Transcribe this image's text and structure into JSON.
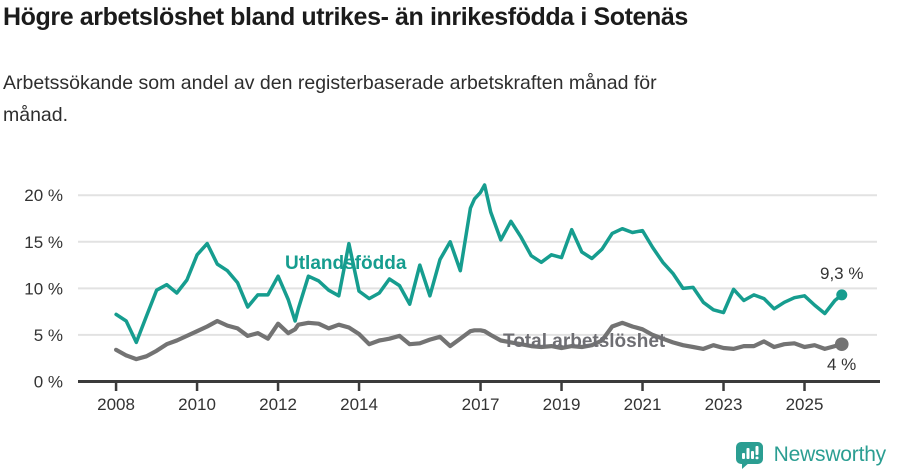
{
  "header": {
    "title": "Högre arbetslöshet bland utrikes- än inrikesfödda i Sotenäs",
    "subtitle_line1": "Arbetssökande som andel av den registerbaserade arbetskraften månad för",
    "subtitle_line2": "månad."
  },
  "footer": {
    "brand": "Newsworthy",
    "logo_icon": "bar-chart-speech-bubble-icon"
  },
  "colors": {
    "accent_teal": "#169d8f",
    "series_gray": "#737373",
    "label_gray": "#6e6e73",
    "axis": "#3b3b3b",
    "grid": "#e2e2e2",
    "tick_text": "#333333"
  },
  "chart_data": {
    "type": "line",
    "title": "Högre arbetslöshet bland utrikes- än inrikesfödda i Sotenäs",
    "subtitle": "Arbetssökande som andel av den registerbaserade arbetskraften månad för månad.",
    "xlabel": "",
    "ylabel": "",
    "grid": "horizontal",
    "legend_position": "inline-labels",
    "xlim": [
      2007.06,
      2026.79
    ],
    "ylim": [
      0,
      20
    ],
    "x_ticks": [
      2008,
      2010,
      2012,
      2014,
      2017,
      2019,
      2021,
      2023,
      2025
    ],
    "x_tick_labels": [
      "2008",
      "2010",
      "2012",
      "2014",
      "2017",
      "2019",
      "2021",
      "2023",
      "2025"
    ],
    "y_ticks": [
      0,
      5,
      10,
      15,
      20
    ],
    "y_tick_labels": [
      "0 %",
      "5 %",
      "10 %",
      "15 %",
      "20 %"
    ],
    "x": [
      2008.0,
      2008.25,
      2008.5,
      2008.75,
      2009.0,
      2009.25,
      2009.5,
      2009.75,
      2010.0,
      2010.25,
      2010.5,
      2010.75,
      2011.0,
      2011.25,
      2011.5,
      2011.75,
      2012.0,
      2012.25,
      2012.42,
      2012.5,
      2012.75,
      2013.0,
      2013.25,
      2013.5,
      2013.75,
      2014.0,
      2014.25,
      2014.5,
      2014.75,
      2015.0,
      2015.25,
      2015.5,
      2015.75,
      2016.0,
      2016.25,
      2016.5,
      2016.75,
      2016.85,
      2017.0,
      2017.1,
      2017.25,
      2017.5,
      2017.75,
      2018.0,
      2018.25,
      2018.5,
      2018.75,
      2019.0,
      2019.25,
      2019.5,
      2019.75,
      2020.0,
      2020.25,
      2020.5,
      2020.75,
      2021.0,
      2021.25,
      2021.5,
      2021.75,
      2022.0,
      2022.25,
      2022.5,
      2022.75,
      2023.0,
      2023.25,
      2023.5,
      2023.75,
      2024.0,
      2024.25,
      2024.5,
      2024.75,
      2025.0,
      2025.25,
      2025.5,
      2025.75,
      2025.92
    ],
    "series": [
      {
        "name": "Utlandsfödda",
        "color": "#169d8f",
        "end_label": "9,3 %",
        "end_value": 9.3,
        "y": [
          7.2,
          6.5,
          4.2,
          7.0,
          9.8,
          10.4,
          9.5,
          10.9,
          13.6,
          14.8,
          12.6,
          11.9,
          10.6,
          8.0,
          9.3,
          9.3,
          11.3,
          8.8,
          6.5,
          7.8,
          11.3,
          10.8,
          9.8,
          9.2,
          14.8,
          9.7,
          8.9,
          9.5,
          11.0,
          10.3,
          8.3,
          12.5,
          9.2,
          13.1,
          15.0,
          11.9,
          18.6,
          19.6,
          20.3,
          21.1,
          18.2,
          15.2,
          17.2,
          15.5,
          13.5,
          12.8,
          13.6,
          13.3,
          16.3,
          13.9,
          13.2,
          14.2,
          15.9,
          16.4,
          16.0,
          16.2,
          14.4,
          12.8,
          11.6,
          10.0,
          10.1,
          8.5,
          7.7,
          7.4,
          9.9,
          8.7,
          9.3,
          8.9,
          7.8,
          8.5,
          9.0,
          9.2,
          8.2,
          7.3,
          8.7,
          9.3
        ]
      },
      {
        "name": "Total arbetslöshet",
        "color": "#737373",
        "end_label": "4 %",
        "end_value": 4.0,
        "y": [
          3.4,
          2.8,
          2.4,
          2.7,
          3.3,
          4.0,
          4.4,
          4.9,
          5.4,
          5.9,
          6.5,
          6.0,
          5.7,
          4.9,
          5.2,
          4.6,
          6.2,
          5.2,
          5.6,
          6.1,
          6.3,
          6.2,
          5.7,
          6.1,
          5.8,
          5.1,
          4.0,
          4.4,
          4.6,
          4.9,
          4.0,
          4.1,
          4.5,
          4.8,
          3.8,
          4.6,
          5.4,
          5.5,
          5.5,
          5.4,
          5.0,
          4.4,
          4.2,
          4.0,
          3.8,
          3.7,
          3.8,
          3.6,
          3.8,
          3.7,
          3.9,
          4.4,
          5.9,
          6.3,
          5.9,
          5.6,
          5.0,
          4.6,
          4.2,
          3.9,
          3.7,
          3.5,
          3.9,
          3.6,
          3.5,
          3.8,
          3.8,
          4.3,
          3.7,
          4.0,
          4.1,
          3.7,
          3.9,
          3.5,
          3.8,
          4.0
        ]
      }
    ]
  }
}
